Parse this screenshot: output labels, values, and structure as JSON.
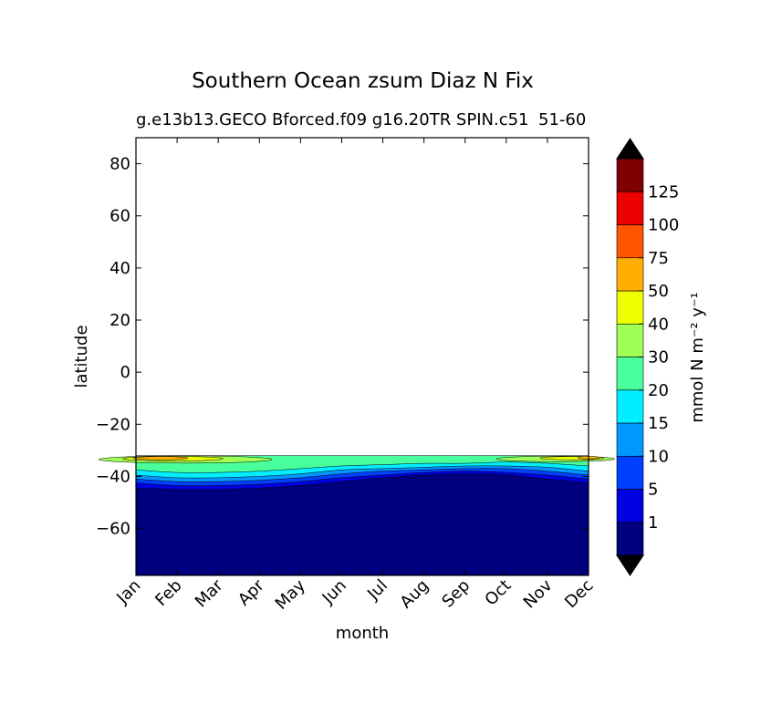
{
  "figure": {
    "title": "Southern Ocean zsum Diaz N Fix",
    "subtitle_left": "g.e13b13.GECO Bforced.f09 g16.20TR SPIN.c51",
    "subtitle_right": "51-60"
  },
  "chart_data": {
    "type": "heatmap",
    "title": "Southern Ocean zsum Diaz N Fix",
    "xlabel": "month",
    "ylabel": "latitude",
    "x_categories": [
      "Jan",
      "Feb",
      "Mar",
      "Apr",
      "May",
      "Jun",
      "Jul",
      "Aug",
      "Sep",
      "Oct",
      "Nov",
      "Dec"
    ],
    "ylim": [
      -78,
      90
    ],
    "yticks": [
      80,
      60,
      40,
      20,
      0,
      -20,
      -40,
      -60
    ],
    "ytick_labels": [
      "80",
      "60",
      "40",
      "20",
      "0",
      "−20",
      "−40",
      "−60"
    ],
    "colorbar": {
      "label": "mmol N m⁻² y⁻¹",
      "levels": [
        0,
        1,
        5,
        10,
        15,
        20,
        30,
        40,
        50,
        75,
        100,
        125,
        150
      ],
      "tick_labels": [
        "1",
        "5",
        "10",
        "15",
        "20",
        "30",
        "40",
        "50",
        "75",
        "100",
        "125"
      ],
      "colors": [
        "#00007f",
        "#0000e0",
        "#0040ff",
        "#0098ff",
        "#00eeff",
        "#49ff9c",
        "#a0ff56",
        "#eeff00",
        "#ffae00",
        "#ff5500",
        "#ee0000",
        "#7f0000"
      ],
      "extend_low_color": "#000000",
      "extend_high_color": "#000000"
    },
    "contour_bands": [
      {
        "level": 0,
        "top_lat": [
          -44.5,
          -45.0,
          -45.0,
          -44.5,
          -43.5,
          -42.0,
          -40.5,
          -39.5,
          -39.0,
          -39.5,
          -41.0,
          -42.5
        ]
      },
      {
        "level": 1,
        "top_lat": [
          -42.5,
          -43.5,
          -43.5,
          -43.0,
          -42.0,
          -40.5,
          -39.5,
          -38.5,
          -38.0,
          -38.5,
          -39.5,
          -41.0
        ]
      },
      {
        "level": 5,
        "top_lat": [
          -41.0,
          -42.0,
          -42.0,
          -41.5,
          -40.5,
          -39.0,
          -38.0,
          -37.5,
          -37.0,
          -37.0,
          -38.0,
          -39.5
        ]
      },
      {
        "level": 10,
        "top_lat": [
          -39.5,
          -40.5,
          -40.5,
          -40.0,
          -39.0,
          -37.5,
          -37.0,
          -36.5,
          -36.0,
          -36.0,
          -36.5,
          -38.0
        ]
      },
      {
        "level": 15,
        "top_lat": [
          -37.5,
          -38.5,
          -38.5,
          -38.0,
          -37.0,
          -36.0,
          -35.5,
          -35.0,
          -35.0,
          -34.5,
          -35.0,
          -36.0
        ]
      },
      {
        "level": 20,
        "top_lat": [
          -32.0,
          -32.0,
          -32.0,
          -32.0,
          -32.0,
          -32.0,
          -32.0,
          -32.0,
          -32.0,
          -32.0,
          -32.0,
          -32.0
        ]
      }
    ]
  }
}
